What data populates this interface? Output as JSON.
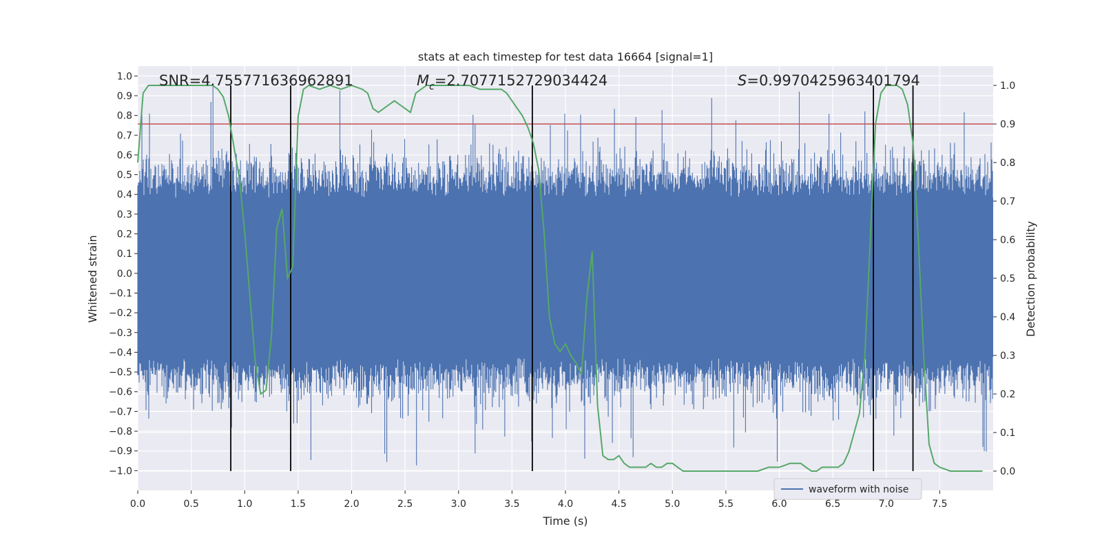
{
  "chart_data": {
    "type": "line",
    "title": "stats at each timestep for test data 16664 [signal=1]",
    "xlabel": "Time (s)",
    "ylabel": "Whitened strain",
    "ylabel_right": "Detection probability",
    "xlim": [
      0.0,
      8.0
    ],
    "ylim": [
      -1.1,
      1.05
    ],
    "ylim_right": [
      -0.05,
      1.05
    ],
    "x_ticks": [
      "0.0",
      "0.5",
      "1.0",
      "1.5",
      "2.0",
      "2.5",
      "3.0",
      "3.5",
      "4.0",
      "4.5",
      "5.0",
      "5.5",
      "6.0",
      "6.5",
      "7.0",
      "7.5"
    ],
    "y_ticks": [
      "1.0",
      "0.9",
      "0.8",
      "0.7",
      "0.6",
      "0.5",
      "0.4",
      "0.3",
      "0.2",
      "0.1",
      "0.0",
      "−0.1",
      "−0.2",
      "−0.3",
      "−0.4",
      "−0.5",
      "−0.6",
      "−0.7",
      "−0.8",
      "−0.9",
      "−1.0"
    ],
    "y_ticks_right": [
      "1.0",
      "0.9",
      "0.8",
      "0.7",
      "0.6",
      "0.5",
      "0.4",
      "0.3",
      "0.2",
      "0.1",
      "0.0"
    ],
    "grid": true,
    "threshold": 0.9,
    "vertical_lines": [
      0.87,
      1.43,
      3.69,
      6.88,
      7.25
    ],
    "annotations": [
      {
        "text": "SNR=4.755771636962891",
        "x": 0.2
      },
      {
        "text": "M_c=2.7077152729034424",
        "x": 2.6
      },
      {
        "text": "S=0.9970425963401794",
        "x": 5.6
      }
    ],
    "legend": {
      "entries": [
        "waveform with noise"
      ],
      "location": "lower right"
    },
    "series": [
      {
        "name": "waveform with noise",
        "axis": "left",
        "color": "#4c72b0",
        "kind": "noise",
        "typical_range": [
          -0.5,
          0.45
        ],
        "extremes": [
          -0.98,
          0.96
        ]
      },
      {
        "name": "detection probability",
        "axis": "right",
        "color": "#55a868",
        "x": [
          0.0,
          0.05,
          0.1,
          0.15,
          0.2,
          0.3,
          0.4,
          0.5,
          0.6,
          0.7,
          0.75,
          0.8,
          0.85,
          0.9,
          0.95,
          1.0,
          1.05,
          1.1,
          1.15,
          1.2,
          1.25,
          1.3,
          1.35,
          1.4,
          1.45,
          1.5,
          1.55,
          1.6,
          1.7,
          1.8,
          1.9,
          2.0,
          2.1,
          2.15,
          2.2,
          2.25,
          2.3,
          2.35,
          2.4,
          2.45,
          2.5,
          2.55,
          2.6,
          2.65,
          2.7,
          2.8,
          2.9,
          3.0,
          3.1,
          3.2,
          3.3,
          3.4,
          3.45,
          3.5,
          3.55,
          3.6,
          3.65,
          3.7,
          3.75,
          3.8,
          3.85,
          3.9,
          3.95,
          4.0,
          4.05,
          4.1,
          4.15,
          4.2,
          4.25,
          4.3,
          4.35,
          4.4,
          4.45,
          4.5,
          4.55,
          4.6,
          4.65,
          4.7,
          4.75,
          4.8,
          4.85,
          4.9,
          4.95,
          5.0,
          5.05,
          5.1,
          5.15,
          5.2,
          5.3,
          5.4,
          5.5,
          5.6,
          5.7,
          5.8,
          5.9,
          6.0,
          6.1,
          6.15,
          6.2,
          6.25,
          6.3,
          6.35,
          6.4,
          6.45,
          6.5,
          6.55,
          6.6,
          6.65,
          6.7,
          6.75,
          6.8,
          6.85,
          6.9,
          6.95,
          7.0,
          7.05,
          7.1,
          7.15,
          7.2,
          7.25,
          7.3,
          7.35,
          7.4,
          7.45,
          7.5,
          7.6,
          7.7,
          7.8,
          7.9
        ],
        "y": [
          0.8,
          0.98,
          1.0,
          1.0,
          1.0,
          1.0,
          1.0,
          1.0,
          1.0,
          1.0,
          0.99,
          0.97,
          0.92,
          0.84,
          0.76,
          0.62,
          0.45,
          0.28,
          0.2,
          0.21,
          0.35,
          0.63,
          0.68,
          0.5,
          0.53,
          0.92,
          0.99,
          1.0,
          0.99,
          1.0,
          0.99,
          1.0,
          0.99,
          0.98,
          0.94,
          0.93,
          0.94,
          0.95,
          0.96,
          0.95,
          0.94,
          0.93,
          0.98,
          0.99,
          1.0,
          1.0,
          1.0,
          1.0,
          1.0,
          0.99,
          0.99,
          0.99,
          0.98,
          0.96,
          0.94,
          0.92,
          0.89,
          0.85,
          0.78,
          0.62,
          0.4,
          0.33,
          0.31,
          0.33,
          0.3,
          0.28,
          0.25,
          0.45,
          0.57,
          0.17,
          0.04,
          0.03,
          0.03,
          0.04,
          0.02,
          0.01,
          0.01,
          0.01,
          0.01,
          0.02,
          0.01,
          0.01,
          0.02,
          0.02,
          0.01,
          0.0,
          0.0,
          0.0,
          0.0,
          0.0,
          0.0,
          0.0,
          0.0,
          0.0,
          0.01,
          0.01,
          0.02,
          0.02,
          0.02,
          0.01,
          0.0,
          0.0,
          0.01,
          0.01,
          0.01,
          0.01,
          0.02,
          0.05,
          0.1,
          0.15,
          0.3,
          0.6,
          0.9,
          0.98,
          1.0,
          1.0,
          1.0,
          0.99,
          0.95,
          0.85,
          0.6,
          0.3,
          0.07,
          0.02,
          0.01,
          0.0,
          0.0,
          0.0,
          0.0
        ]
      }
    ]
  }
}
